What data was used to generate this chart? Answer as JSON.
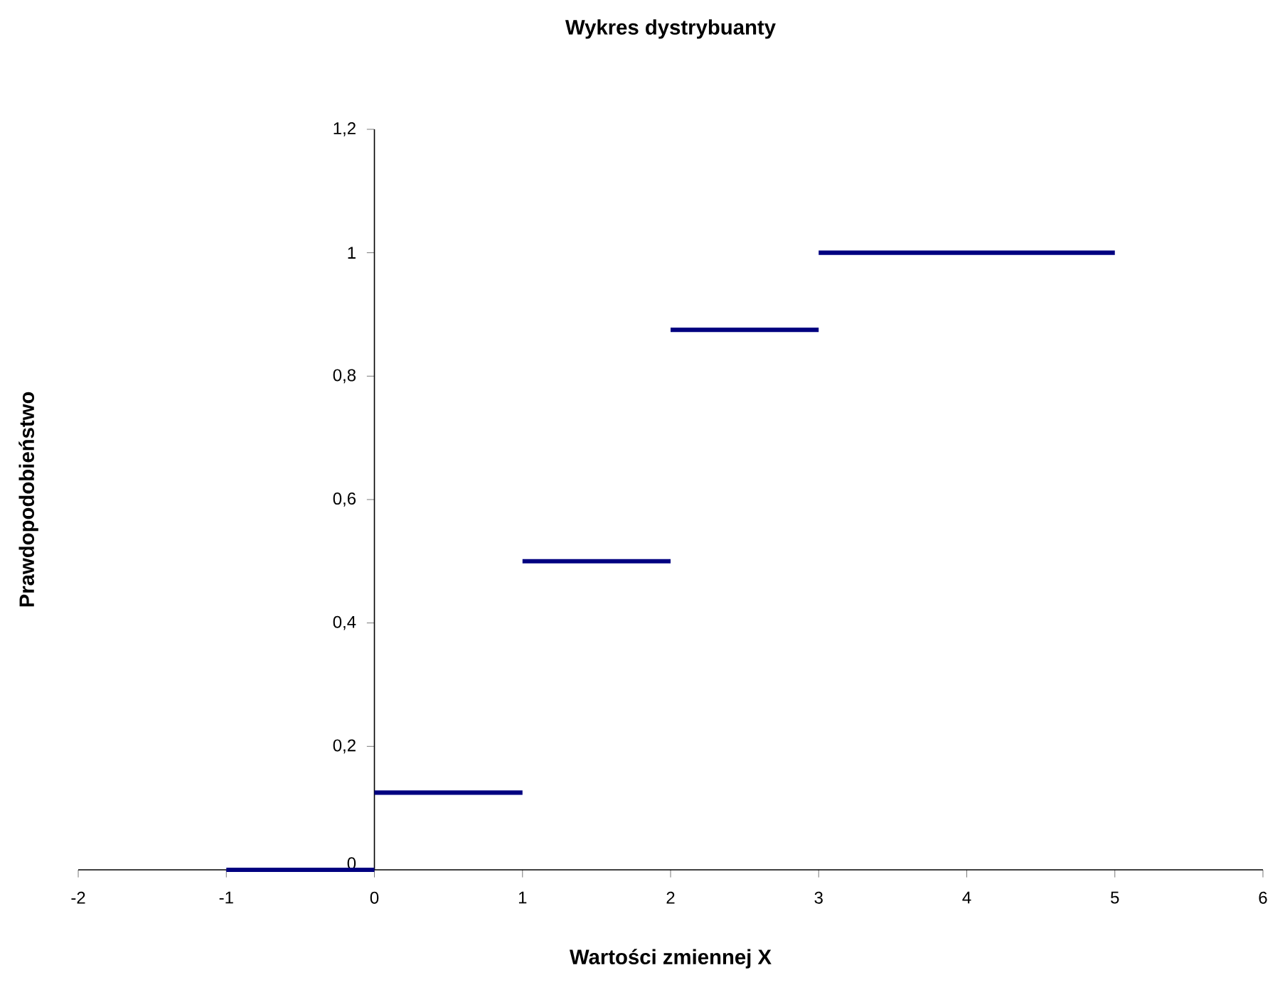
{
  "chart_data": {
    "type": "line",
    "title": "Wykres dystrybuanty",
    "xlabel": "Wartości zmiennej X",
    "ylabel": "Prawdopodobieństwo",
    "xlim": [
      -2,
      6
    ],
    "xticks": [
      -2,
      -1,
      0,
      1,
      2,
      3,
      4,
      5,
      6
    ],
    "ylim": [
      0,
      1.2
    ],
    "yticks": [
      0,
      {
        "value": 0.2,
        "label": "0,2"
      },
      {
        "value": 0.4,
        "label": "0,4"
      },
      {
        "value": 0.6,
        "label": "0,6"
      },
      {
        "value": 0.8,
        "label": "0,8"
      },
      1,
      {
        "value": 1.2,
        "label": "1,2"
      }
    ],
    "marker": "none",
    "line_style": "solid",
    "series": [
      {
        "color": "#000080",
        "x": [
          -1,
          0
        ],
        "values": [
          0,
          0
        ]
      },
      {
        "color": "#000080",
        "x": [
          0,
          1
        ],
        "values": [
          0.125,
          0.125
        ]
      },
      {
        "color": "#000080",
        "x": [
          1,
          2
        ],
        "values": [
          0.5,
          0.5
        ]
      },
      {
        "color": "#000080",
        "x": [
          2,
          3
        ],
        "values": [
          0.875,
          0.875
        ]
      },
      {
        "color": "#000080",
        "x": [
          3,
          5
        ],
        "values": [
          1,
          1
        ]
      }
    ]
  }
}
